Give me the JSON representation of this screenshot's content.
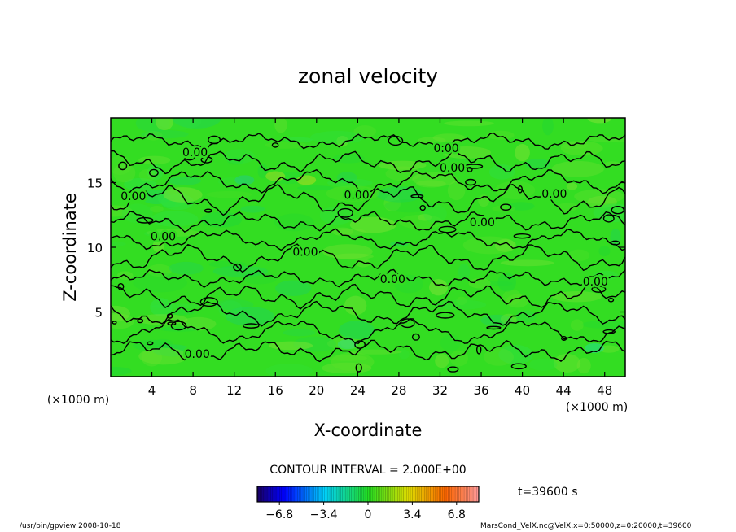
{
  "chart_data": {
    "type": "heatmap",
    "title": "zonal velocity",
    "xlabel": "X-coordinate",
    "ylabel": "Z-coordinate",
    "x_unit": "(×1000 m)",
    "y_unit": "(×1000 m)",
    "xlim": [
      0,
      50
    ],
    "ylim": [
      0,
      20
    ],
    "x_ticks": [
      4,
      8,
      12,
      16,
      20,
      24,
      28,
      32,
      36,
      40,
      44,
      48
    ],
    "y_ticks": [
      5,
      10,
      15
    ],
    "contour_interval_text": "CONTOUR INTERVAL = 2.000E+00",
    "contour_labels": [
      {
        "x": 8.2,
        "z": 17.3,
        "text": "0.00"
      },
      {
        "x": 32.6,
        "z": 17.6,
        "text": "0.00"
      },
      {
        "x": 33.2,
        "z": 16.1,
        "text": "0.00"
      },
      {
        "x": 2.2,
        "z": 13.9,
        "text": "0.00"
      },
      {
        "x": 23.9,
        "z": 14.0,
        "text": "0.00"
      },
      {
        "x": 43.1,
        "z": 14.1,
        "text": "0.00"
      },
      {
        "x": 36.1,
        "z": 11.9,
        "text": "0.00"
      },
      {
        "x": 5.1,
        "z": 10.8,
        "text": "0.00"
      },
      {
        "x": 18.9,
        "z": 9.6,
        "text": "0.00"
      },
      {
        "x": 27.4,
        "z": 7.5,
        "text": "0.00"
      },
      {
        "x": 47.1,
        "z": 7.3,
        "text": "0.00"
      },
      {
        "x": 8.4,
        "z": 1.7,
        "text": "0.00"
      }
    ],
    "colorbar": {
      "ticks": [
        -6.8,
        -3.4,
        0,
        3.4,
        6.8
      ],
      "tick_labels": [
        "−6.8",
        "−3.4",
        "0",
        "3.4",
        "6.8"
      ],
      "range": [
        -8.5,
        8.5
      ]
    },
    "time_label": "t=39600 s",
    "value_range_estimate": [
      -2.5,
      2.5
    ]
  },
  "footer": {
    "left": "/usr/bin/gpview   2008-10-18",
    "right": "MarsCond_VelX.nc@VelX,x=0:50000,z=0:20000,t=39600"
  },
  "colors": {
    "field_base": "#33dd22",
    "contour": "#000000"
  }
}
